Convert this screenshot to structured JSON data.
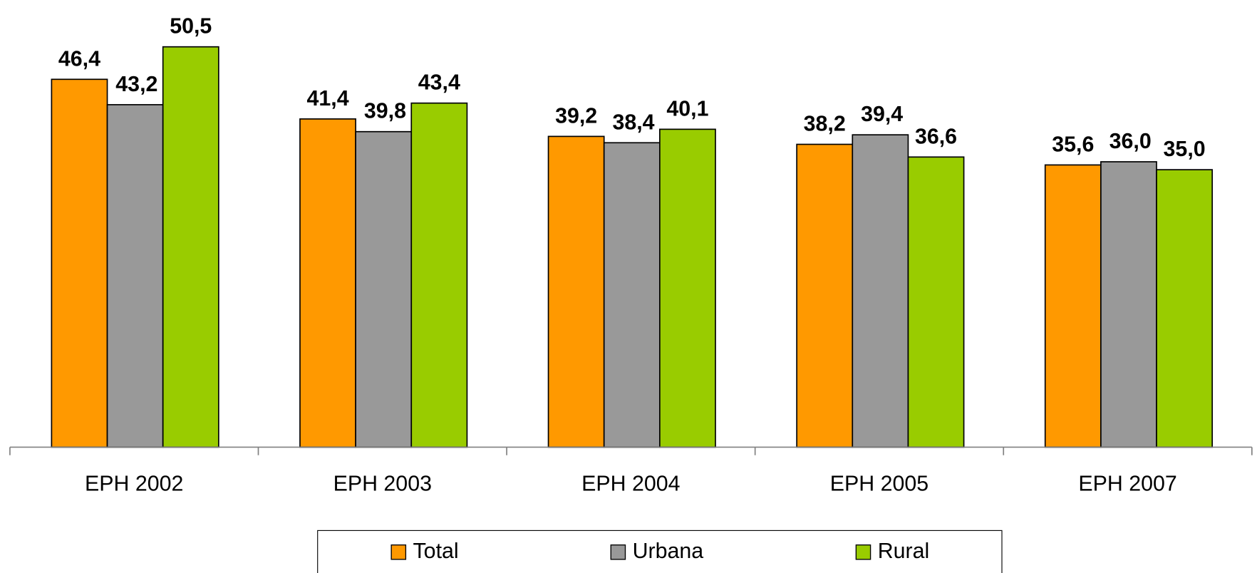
{
  "chart_data": {
    "type": "bar",
    "categories": [
      "EPH 2002",
      "EPH 2003",
      "EPH 2004",
      "EPH 2005",
      "EPH 2007"
    ],
    "series": [
      {
        "name": "Total",
        "color": "#ff9900",
        "values": [
          46.4,
          41.4,
          39.2,
          38.2,
          35.6
        ],
        "value_labels": [
          "46,4",
          "41,4",
          "39,2",
          "38,2",
          "35,6"
        ]
      },
      {
        "name": "Urbana",
        "color": "#999999",
        "values": [
          43.2,
          39.8,
          38.4,
          39.4,
          36.0
        ],
        "value_labels": [
          "43,2",
          "39,8",
          "38,4",
          "39,4",
          "36,0"
        ]
      },
      {
        "name": "Rural",
        "color": "#99cc00",
        "values": [
          50.5,
          43.4,
          40.1,
          36.6,
          35.0
        ],
        "value_labels": [
          "50,5",
          "43,4",
          "40,1",
          "36,6",
          "35,0"
        ]
      }
    ],
    "ylim": [
      0,
      56
    ],
    "legend": "bottom"
  }
}
